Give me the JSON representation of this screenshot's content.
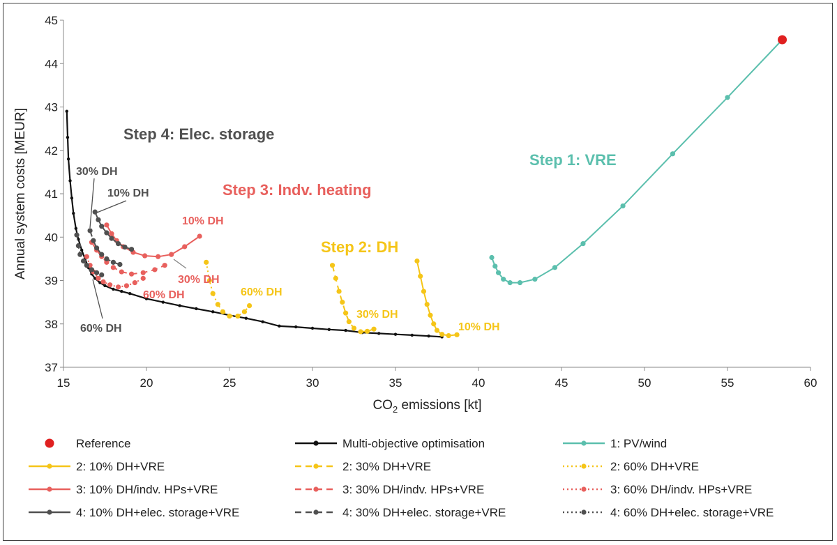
{
  "chart_data": {
    "type": "line",
    "xlabel": "CO2 emissions [kt]",
    "xlabel_main": "CO",
    "xlabel_sub": "2",
    "xlabel_rest": " emissions [kt]",
    "ylabel": "Annual system costs [MEUR]",
    "xlim": [
      15,
      60
    ],
    "ylim": [
      37,
      45
    ],
    "xticks": [
      15,
      20,
      25,
      30,
      35,
      40,
      45,
      50,
      55,
      60
    ],
    "yticks": [
      37,
      38,
      39,
      40,
      41,
      42,
      43,
      44,
      45
    ],
    "grid": false,
    "legend_position": "bottom",
    "colors": {
      "teal": "#5bbfad",
      "yellow": "#f5c518",
      "red": "#e8605d",
      "dark": "#505050",
      "black": "#111111",
      "reference": "#e02020"
    },
    "series": [
      {
        "name": "Reference",
        "style": "marker",
        "color": "#e02020",
        "points": [
          [
            58.3,
            44.55
          ]
        ]
      },
      {
        "name": "Multi-objective optimisation",
        "style": "solid",
        "color": "#111111",
        "points": [
          [
            15.2,
            42.9
          ],
          [
            15.25,
            42.3
          ],
          [
            15.3,
            41.8
          ],
          [
            15.4,
            41.3
          ],
          [
            15.5,
            40.9
          ],
          [
            15.6,
            40.55
          ],
          [
            15.75,
            40.2
          ],
          [
            15.9,
            39.95
          ],
          [
            16.1,
            39.7
          ],
          [
            16.3,
            39.5
          ],
          [
            16.5,
            39.3
          ],
          [
            16.7,
            39.15
          ],
          [
            16.9,
            39.05
          ],
          [
            17.2,
            38.95
          ],
          [
            17.5,
            38.88
          ],
          [
            18.0,
            38.8
          ],
          [
            18.5,
            38.75
          ],
          [
            19.0,
            38.7
          ],
          [
            20.0,
            38.58
          ],
          [
            21.0,
            38.5
          ],
          [
            22.0,
            38.42
          ],
          [
            23.0,
            38.35
          ],
          [
            24.0,
            38.28
          ],
          [
            25.0,
            38.2
          ],
          [
            26.0,
            38.13
          ],
          [
            27.0,
            38.05
          ],
          [
            28.0,
            37.95
          ],
          [
            29.0,
            37.93
          ],
          [
            30.0,
            37.9
          ],
          [
            31.0,
            37.87
          ],
          [
            32.0,
            37.85
          ],
          [
            33.0,
            37.8
          ],
          [
            34.0,
            37.78
          ],
          [
            35.0,
            37.76
          ],
          [
            36.0,
            37.74
          ],
          [
            37.0,
            37.72
          ],
          [
            37.8,
            37.7
          ]
        ]
      },
      {
        "name": "1: PV/wind",
        "style": "solid",
        "color": "#5bbfad",
        "points": [
          [
            40.8,
            39.53
          ],
          [
            41.0,
            39.33
          ],
          [
            41.2,
            39.18
          ],
          [
            41.5,
            39.03
          ],
          [
            41.9,
            38.95
          ],
          [
            42.5,
            38.95
          ],
          [
            43.4,
            39.03
          ],
          [
            44.6,
            39.3
          ],
          [
            46.3,
            39.85
          ],
          [
            48.7,
            40.72
          ],
          [
            51.7,
            41.92
          ],
          [
            55.0,
            43.22
          ],
          [
            58.3,
            44.55
          ]
        ]
      },
      {
        "name": "2: 10% DH+VRE",
        "style": "solid",
        "color": "#f5c518",
        "points": [
          [
            36.3,
            39.45
          ],
          [
            36.5,
            39.1
          ],
          [
            36.7,
            38.75
          ],
          [
            36.9,
            38.45
          ],
          [
            37.1,
            38.2
          ],
          [
            37.3,
            38.0
          ],
          [
            37.5,
            37.85
          ],
          [
            37.8,
            37.76
          ],
          [
            38.2,
            37.73
          ],
          [
            38.7,
            37.75
          ]
        ]
      },
      {
        "name": "2: 30% DH+VRE",
        "style": "dashed",
        "color": "#f5c518",
        "points": [
          [
            31.2,
            39.35
          ],
          [
            31.4,
            39.05
          ],
          [
            31.6,
            38.75
          ],
          [
            31.8,
            38.5
          ],
          [
            32.0,
            38.25
          ],
          [
            32.2,
            38.05
          ],
          [
            32.5,
            37.9
          ],
          [
            32.9,
            37.82
          ],
          [
            33.3,
            37.83
          ],
          [
            33.7,
            37.88
          ]
        ]
      },
      {
        "name": "2: 60% DH+VRE",
        "style": "dotted",
        "color": "#f5c518",
        "points": [
          [
            23.6,
            39.42
          ],
          [
            23.8,
            39.0
          ],
          [
            24.0,
            38.7
          ],
          [
            24.3,
            38.45
          ],
          [
            24.6,
            38.28
          ],
          [
            25.0,
            38.18
          ],
          [
            25.5,
            38.18
          ],
          [
            25.9,
            38.28
          ],
          [
            26.2,
            38.42
          ]
        ]
      },
      {
        "name": "3: 10% DH/indv. HPs+VRE",
        "style": "solid",
        "color": "#e8605d",
        "points": [
          [
            17.6,
            40.28
          ],
          [
            17.9,
            40.08
          ],
          [
            18.2,
            39.92
          ],
          [
            18.6,
            39.78
          ],
          [
            19.2,
            39.65
          ],
          [
            19.9,
            39.57
          ],
          [
            20.7,
            39.55
          ],
          [
            21.5,
            39.6
          ],
          [
            22.3,
            39.78
          ],
          [
            23.2,
            40.02
          ]
        ]
      },
      {
        "name": "3: 30% DH/indv. HPs+VRE",
        "style": "dashed",
        "color": "#e8605d",
        "points": [
          [
            16.7,
            39.88
          ],
          [
            17.0,
            39.7
          ],
          [
            17.3,
            39.55
          ],
          [
            17.6,
            39.42
          ],
          [
            18.0,
            39.3
          ],
          [
            18.5,
            39.2
          ],
          [
            19.1,
            39.15
          ],
          [
            19.8,
            39.18
          ],
          [
            20.5,
            39.25
          ],
          [
            21.1,
            39.35
          ]
        ]
      },
      {
        "name": "3: 60% DH/indv. HPs+VRE",
        "style": "dotted",
        "color": "#e8605d",
        "points": [
          [
            16.4,
            39.55
          ],
          [
            16.6,
            39.35
          ],
          [
            16.8,
            39.2
          ],
          [
            17.1,
            39.05
          ],
          [
            17.4,
            38.97
          ],
          [
            17.8,
            38.9
          ],
          [
            18.3,
            38.85
          ],
          [
            18.8,
            38.88
          ],
          [
            19.3,
            38.95
          ],
          [
            19.8,
            39.05
          ]
        ]
      },
      {
        "name": "4: 10% DH+elec. storage+VRE",
        "style": "solid",
        "color": "#505050",
        "points": [
          [
            16.9,
            40.58
          ],
          [
            17.1,
            40.4
          ],
          [
            17.3,
            40.25
          ],
          [
            17.6,
            40.1
          ],
          [
            17.9,
            39.97
          ],
          [
            18.3,
            39.85
          ],
          [
            18.7,
            39.77
          ],
          [
            19.1,
            39.72
          ]
        ]
      },
      {
        "name": "4: 30% DH+elec. storage+VRE",
        "style": "dashed",
        "color": "#505050",
        "points": [
          [
            16.6,
            40.15
          ],
          [
            16.8,
            39.92
          ],
          [
            17.0,
            39.75
          ],
          [
            17.3,
            39.6
          ],
          [
            17.6,
            39.5
          ],
          [
            18.0,
            39.42
          ],
          [
            18.4,
            39.37
          ]
        ]
      },
      {
        "name": "4: 60% DH+elec. storage+VRE",
        "style": "dotted",
        "color": "#505050",
        "points": [
          [
            15.8,
            40.05
          ],
          [
            15.9,
            39.8
          ],
          [
            16.0,
            39.6
          ],
          [
            16.2,
            39.45
          ],
          [
            16.4,
            39.35
          ],
          [
            16.7,
            39.25
          ],
          [
            17.0,
            39.18
          ],
          [
            17.3,
            39.13
          ]
        ]
      }
    ],
    "annotations": [
      {
        "id": "step4",
        "text": "Step 4: Elec. storage",
        "color": "#505050"
      },
      {
        "id": "step3",
        "text": "Step 3: Indv. heating",
        "color": "#e8605d"
      },
      {
        "id": "step2",
        "text": "Step 2: DH",
        "color": "#f5c518"
      },
      {
        "id": "step1",
        "text": "Step 1: VRE",
        "color": "#5bbfad"
      },
      {
        "id": "s4-30",
        "text": "30% DH",
        "color": "#505050"
      },
      {
        "id": "s4-10",
        "text": "10% DH",
        "color": "#505050"
      },
      {
        "id": "s4-60",
        "text": "60% DH",
        "color": "#505050"
      },
      {
        "id": "s3-10",
        "text": "10% DH",
        "color": "#e8605d"
      },
      {
        "id": "s3-30",
        "text": "30% DH",
        "color": "#e8605d"
      },
      {
        "id": "s3-60",
        "text": "60% DH",
        "color": "#e8605d"
      },
      {
        "id": "s2-60",
        "text": "60% DH",
        "color": "#f5c518"
      },
      {
        "id": "s2-30",
        "text": "30% DH",
        "color": "#f5c518"
      },
      {
        "id": "s2-10",
        "text": "10% DH",
        "color": "#f5c518"
      }
    ],
    "legend": [
      {
        "label": "Reference",
        "style": "marker",
        "color": "#e02020"
      },
      {
        "label": "Multi-objective optimisation",
        "style": "solid",
        "color": "#111111"
      },
      {
        "label": "1: PV/wind",
        "style": "solid",
        "color": "#5bbfad"
      },
      {
        "label": "2: 10% DH+VRE",
        "style": "solid",
        "color": "#f5c518"
      },
      {
        "label": "2: 30% DH+VRE",
        "style": "dashed",
        "color": "#f5c518"
      },
      {
        "label": "2: 60% DH+VRE",
        "style": "dotted",
        "color": "#f5c518"
      },
      {
        "label": "3: 10% DH/indv. HPs+VRE",
        "style": "solid",
        "color": "#e8605d"
      },
      {
        "label": "3: 30% DH/indv. HPs+VRE",
        "style": "dashed",
        "color": "#e8605d"
      },
      {
        "label": "3: 60% DH/indv. HPs+VRE",
        "style": "dotted",
        "color": "#e8605d"
      },
      {
        "label": "4: 10% DH+elec. storage+VRE",
        "style": "solid",
        "color": "#505050"
      },
      {
        "label": "4: 30% DH+elec. storage+VRE",
        "style": "dashed",
        "color": "#505050"
      },
      {
        "label": "4: 60% DH+elec. storage+VRE",
        "style": "dotted",
        "color": "#505050"
      }
    ]
  }
}
